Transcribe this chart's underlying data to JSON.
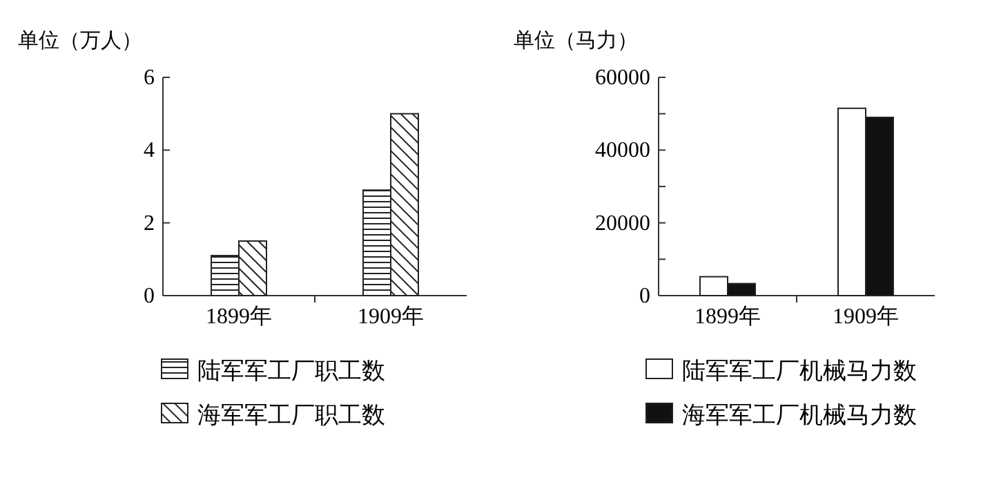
{
  "chart_data": [
    {
      "type": "bar",
      "ylabel": "单位（万人）",
      "categories": [
        "1899年",
        "1909年"
      ],
      "ylim": [
        0,
        6
      ],
      "yticks": [
        0,
        2,
        4,
        6
      ],
      "legend": "bottom",
      "series": [
        {
          "name": "陆军军工厂职工数",
          "color": "#222222",
          "values": [
            1.1,
            2.9
          ]
        },
        {
          "name": "海军军工厂职工数",
          "color": "#222222",
          "values": [
            1.5,
            5.0
          ]
        }
      ]
    },
    {
      "type": "bar",
      "ylabel": "单位（马力）",
      "categories": [
        "1899年",
        "1909年"
      ],
      "ylim": [
        0,
        60000
      ],
      "yticks": [
        0,
        {
          "value": 10000,
          "label": null
        },
        20000,
        {
          "value": 30000,
          "label": null
        },
        40000,
        {
          "value": 50000,
          "label": null
        },
        60000
      ],
      "legend": "bottom",
      "series": [
        {
          "name": "陆军军工厂机械马力数",
          "color": "#ffffff",
          "values": [
            5200,
            51500
          ]
        },
        {
          "name": "海军军工厂机械马力数",
          "color": "#111111",
          "values": [
            3300,
            49000
          ]
        }
      ]
    }
  ]
}
